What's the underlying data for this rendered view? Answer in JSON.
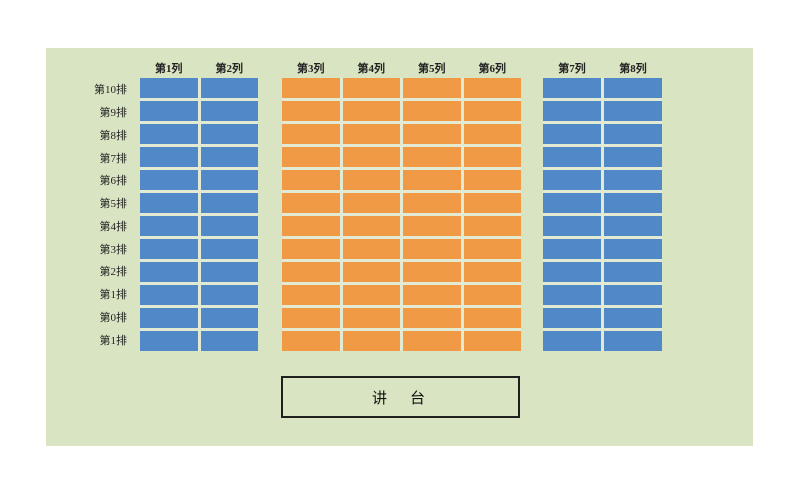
{
  "panel": {
    "background": "#d9e4c2"
  },
  "colors": {
    "blue": "#5088c8",
    "orange": "#f09a45",
    "gridline": "#e2ead4"
  },
  "row_labels": [
    "第10排",
    "第9排",
    "第8排",
    "第7排",
    "第6排",
    "第5排",
    "第4排",
    "第3排",
    "第2排",
    "第1排",
    "第0排",
    "第1排"
  ],
  "sections": [
    {
      "name": "left",
      "color_key": "blue",
      "columns": [
        "第1列",
        "第2列"
      ]
    },
    {
      "name": "middle",
      "color_key": "orange",
      "columns": [
        "第3列",
        "第4列",
        "第5列",
        "第6列"
      ]
    },
    {
      "name": "right",
      "color_key": "blue",
      "columns": [
        "第7列",
        "第8列"
      ]
    }
  ],
  "row_count": 12,
  "podium": {
    "label": "讲　台"
  }
}
